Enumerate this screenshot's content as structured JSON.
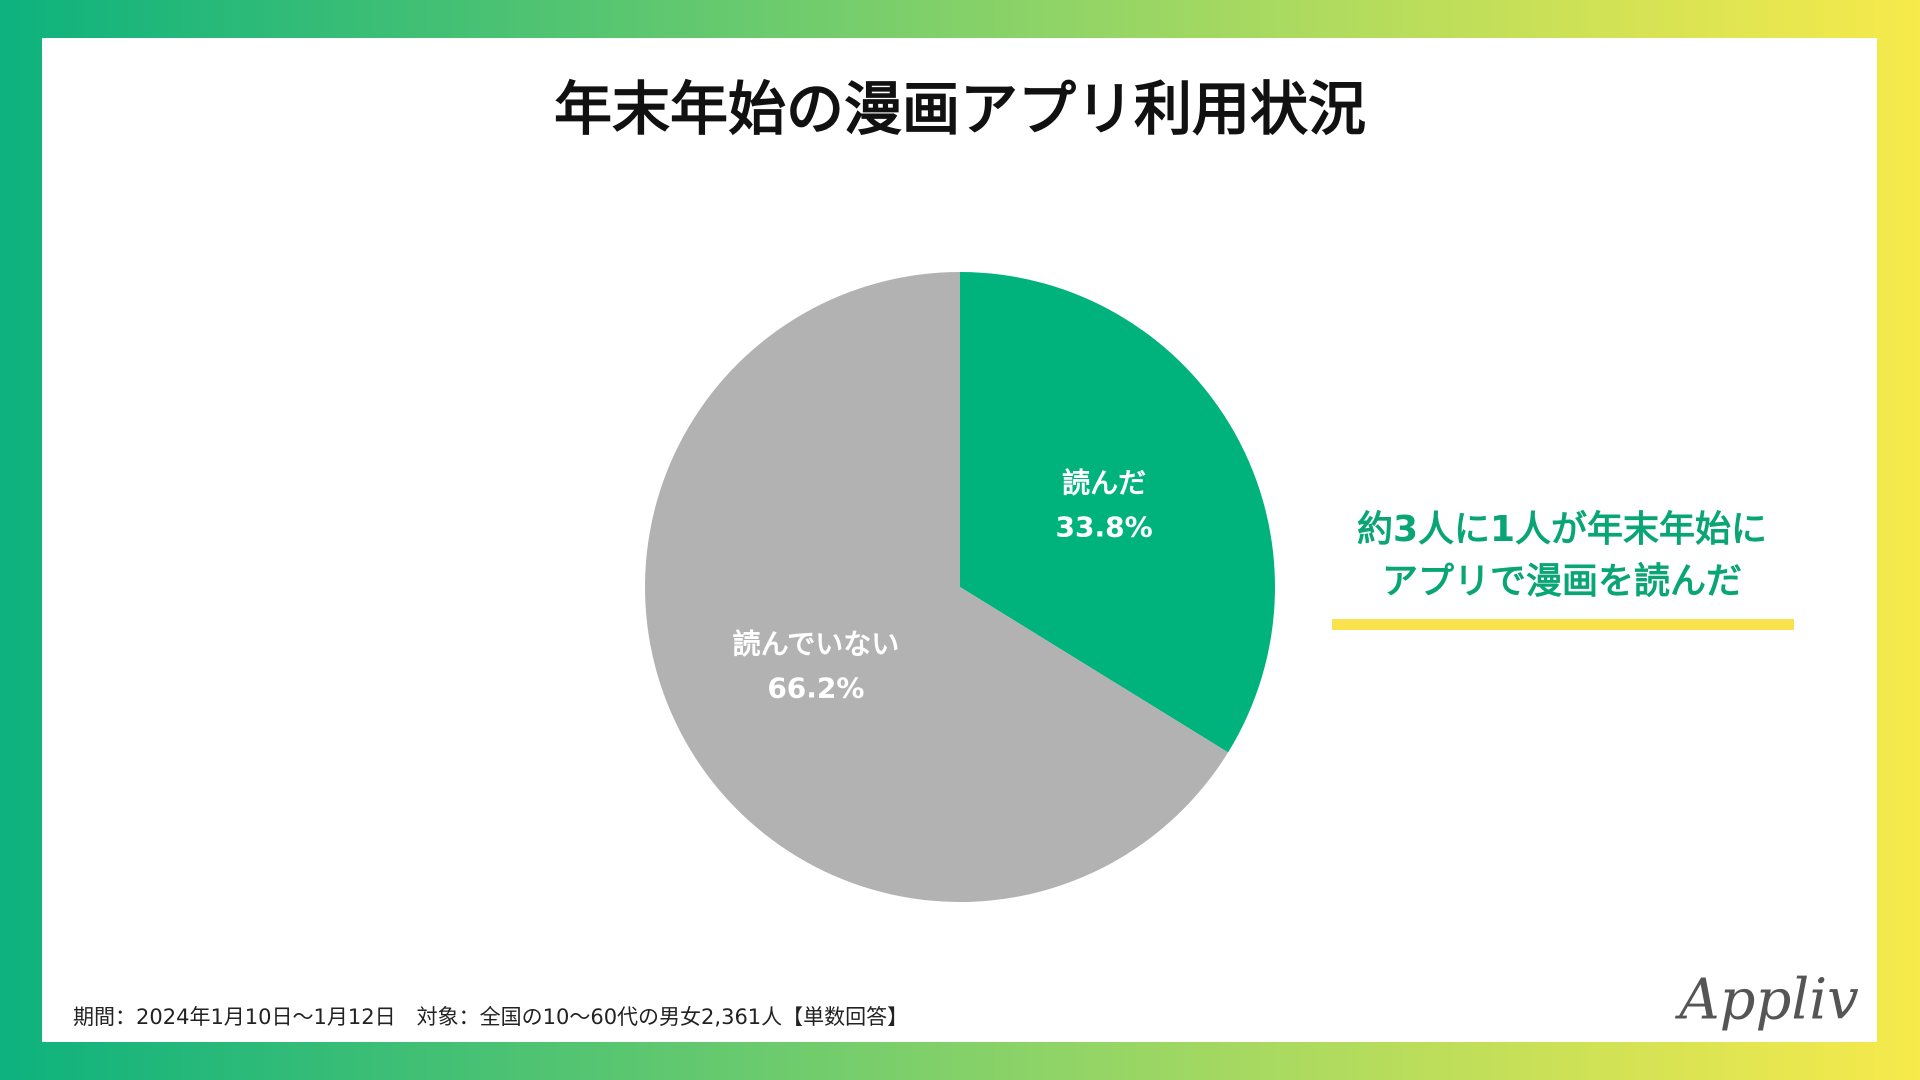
{
  "chart_data": {
    "type": "pie",
    "title": "年末年始の漫画アプリ利用状況",
    "categories": [
      "読んだ",
      "読んでいない"
    ],
    "values": [
      33.8,
      66.2
    ],
    "value_labels": [
      "33.8%",
      "66.2%"
    ],
    "colors": [
      "#00b37d",
      "#b2b2b2"
    ],
    "annotation": [
      "約3人に1人が年末年始に",
      "アプリで漫画を読んだ"
    ],
    "note": "期間：2024年1月10日〜1月12日　対象：全国の10〜60代の男女2,361人【単数回答】",
    "brand": "Appliv"
  }
}
